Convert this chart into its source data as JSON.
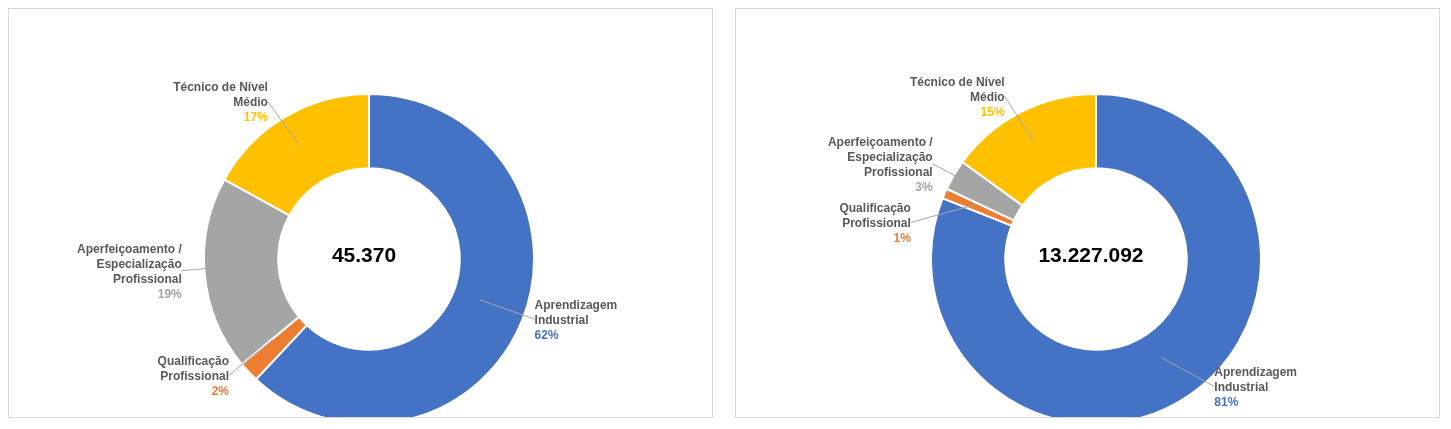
{
  "chart_data": [
    {
      "type": "donut",
      "categories": [
        "Aprendizagem Industrial",
        "Qualificação Profissional",
        "Aperfeiçoamento / Especialização Profissional",
        "Técnico de Nível Médio"
      ],
      "values": [
        62,
        2,
        19,
        17
      ],
      "colors": [
        "#4472c4",
        "#ed7d31",
        "#a5a5a5",
        "#ffc000"
      ],
      "value_labels": [
        "62%",
        "2%",
        "19%",
        "17%"
      ],
      "annotations": [
        "45.370"
      ],
      "legend": false
    },
    {
      "type": "donut",
      "categories": [
        "Aprendizagem Industrial",
        "Qualificação Profissional",
        "Aperfeiçoamento / Especialização Profissional",
        "Técnico de Nível Médio"
      ],
      "values": [
        81,
        1,
        3,
        15
      ],
      "colors": [
        "#4472c4",
        "#ed7d31",
        "#a5a5a5",
        "#ffc000"
      ],
      "value_labels": [
        "81%",
        "1%",
        "3%",
        "15%"
      ],
      "annotations": [
        "13.227.092"
      ],
      "legend": false
    }
  ]
}
